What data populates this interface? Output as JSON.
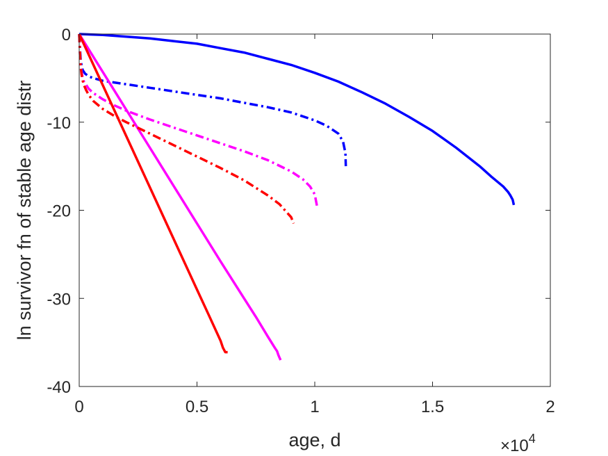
{
  "chart_data": {
    "type": "line",
    "xlabel": "age, d",
    "ylabel": "ln survivor fn of stable age distr",
    "x_exponent_label": "×10",
    "x_exponent_power": "4",
    "x_scale_factor": 10000,
    "xlim": [
      0,
      20000
    ],
    "ylim": [
      -40,
      0
    ],
    "grid": false,
    "box": true,
    "legend": "none",
    "x_ticks": [
      0,
      5000,
      10000,
      15000,
      20000
    ],
    "x_tick_labels": [
      "0",
      "0.5",
      "1",
      "1.5",
      "2"
    ],
    "y_ticks": [
      0,
      -10,
      -20,
      -30,
      -40
    ],
    "y_tick_labels": [
      "0",
      "-10",
      "-20",
      "-30",
      "-40"
    ],
    "series": [
      {
        "color": "#0000ff",
        "style": "solid",
        "x": [
          0,
          1000,
          2000,
          3000,
          4000,
          5000,
          6000,
          7000,
          8000,
          9000,
          10000,
          11000,
          12000,
          13000,
          14000,
          15000,
          16000,
          17000,
          17500,
          18000,
          18200,
          18300,
          18400,
          18450
        ],
        "y": [
          0,
          -0.1,
          -0.3,
          -0.5,
          -0.8,
          -1.1,
          -1.6,
          -2.1,
          -2.8,
          -3.5,
          -4.4,
          -5.4,
          -6.6,
          -7.9,
          -9.4,
          -11.0,
          -12.9,
          -15.0,
          -16.2,
          -17.3,
          -17.9,
          -18.3,
          -18.8,
          -19.4
        ]
      },
      {
        "color": "#0000ff",
        "style": "dashdot",
        "x": [
          0,
          30,
          60,
          100,
          150,
          250,
          400,
          600,
          1000,
          2000,
          3000,
          4000,
          5000,
          6000,
          7000,
          8000,
          9000,
          10000,
          10500,
          11000,
          11200,
          11300,
          11320
        ],
        "y": [
          0,
          -1.5,
          -2.8,
          -3.6,
          -4.1,
          -4.5,
          -4.8,
          -5.0,
          -5.3,
          -5.7,
          -6.1,
          -6.5,
          -6.9,
          -7.3,
          -7.8,
          -8.3,
          -8.9,
          -9.8,
          -10.4,
          -11.3,
          -12.2,
          -13.5,
          -15.0
        ]
      },
      {
        "color": "#ff00ff",
        "style": "solid",
        "x": [
          0,
          1000,
          2000,
          3000,
          4000,
          5000,
          6000,
          7000,
          7500,
          8000,
          8300,
          8400,
          8450,
          8500,
          8550
        ],
        "y": [
          0,
          -4.3,
          -8.6,
          -12.9,
          -17.2,
          -21.5,
          -25.8,
          -30.0,
          -32.1,
          -34.3,
          -35.6,
          -36.0,
          -36.4,
          -36.7,
          -37.0
        ]
      },
      {
        "color": "#ff00ff",
        "style": "dashdot",
        "x": [
          0,
          30,
          60,
          100,
          150,
          200,
          300,
          400,
          600,
          1000,
          1500,
          2000,
          3000,
          4000,
          5000,
          6000,
          7000,
          8000,
          9000,
          9500,
          9800,
          10000,
          10100
        ],
        "y": [
          0,
          -2.0,
          -3.5,
          -4.3,
          -5.0,
          -5.4,
          -5.8,
          -6.2,
          -6.7,
          -7.4,
          -8.1,
          -8.7,
          -9.7,
          -10.6,
          -11.5,
          -12.4,
          -13.3,
          -14.3,
          -15.6,
          -16.5,
          -17.3,
          -18.2,
          -19.6
        ]
      },
      {
        "color": "#ff0000",
        "style": "solid",
        "x": [
          0,
          1000,
          2000,
          3000,
          4000,
          5000,
          5500,
          6000,
          6100,
          6200,
          6300
        ],
        "y": [
          0,
          -5.8,
          -11.6,
          -17.4,
          -23.2,
          -29.0,
          -31.9,
          -34.8,
          -35.6,
          -36.1,
          -36.1
        ]
      },
      {
        "color": "#ff0000",
        "style": "dashdot",
        "x": [
          0,
          30,
          60,
          100,
          150,
          200,
          300,
          400,
          600,
          1000,
          1500,
          2000,
          3000,
          4000,
          5000,
          6000,
          7000,
          8000,
          8500,
          8800,
          9000,
          9100
        ],
        "y": [
          0,
          -2.0,
          -3.6,
          -4.6,
          -5.3,
          -5.8,
          -6.4,
          -6.9,
          -7.6,
          -8.5,
          -9.3,
          -10.0,
          -11.3,
          -12.6,
          -13.9,
          -15.2,
          -16.6,
          -18.3,
          -19.3,
          -20.2,
          -20.8,
          -21.5
        ]
      }
    ]
  }
}
